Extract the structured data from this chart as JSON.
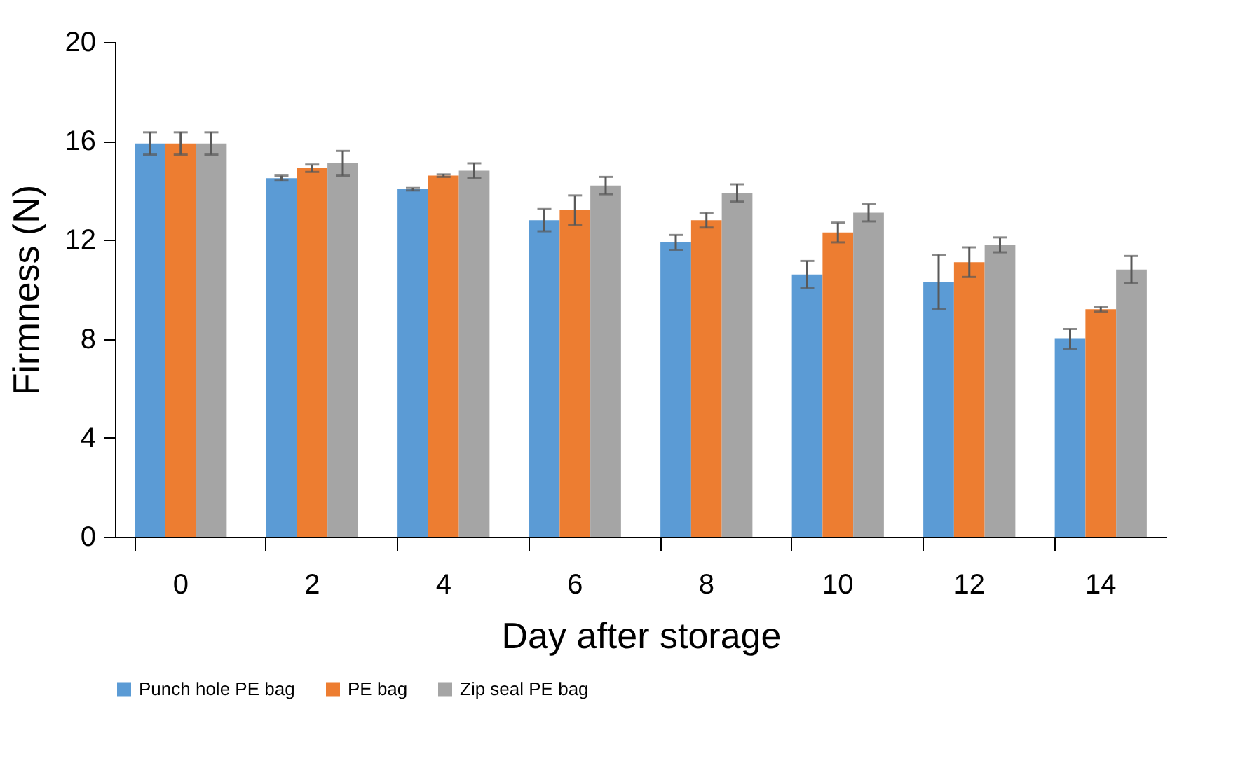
{
  "chart_data": {
    "type": "bar",
    "xlabel": "Day after storage",
    "ylabel": "Firmness (N)",
    "categories": [
      "0",
      "2",
      "4",
      "6",
      "8",
      "10",
      "12",
      "14"
    ],
    "series": [
      {
        "name": "Punch hole PE bag",
        "color": "#5b9bd5",
        "values": [
          15.9,
          14.5,
          14.05,
          12.8,
          11.9,
          10.6,
          10.3,
          8.0
        ],
        "errors": [
          0.45,
          0.1,
          0.05,
          0.45,
          0.3,
          0.55,
          1.1,
          0.4
        ]
      },
      {
        "name": "PE bag",
        "color": "#ed7d31",
        "values": [
          15.9,
          14.9,
          14.6,
          13.2,
          12.8,
          12.3,
          11.1,
          9.2
        ],
        "errors": [
          0.45,
          0.15,
          0.05,
          0.6,
          0.3,
          0.4,
          0.6,
          0.1
        ]
      },
      {
        "name": "Zip seal PE bag",
        "color": "#a5a5a5",
        "values": [
          15.9,
          15.1,
          14.8,
          14.2,
          13.9,
          13.1,
          11.8,
          10.8
        ],
        "errors": [
          0.45,
          0.5,
          0.3,
          0.35,
          0.35,
          0.35,
          0.3,
          0.55
        ]
      }
    ],
    "ylim": [
      0,
      20
    ],
    "yticks": [
      0,
      4,
      8,
      12,
      16,
      20
    ],
    "grid": false,
    "legend": "bottom"
  }
}
